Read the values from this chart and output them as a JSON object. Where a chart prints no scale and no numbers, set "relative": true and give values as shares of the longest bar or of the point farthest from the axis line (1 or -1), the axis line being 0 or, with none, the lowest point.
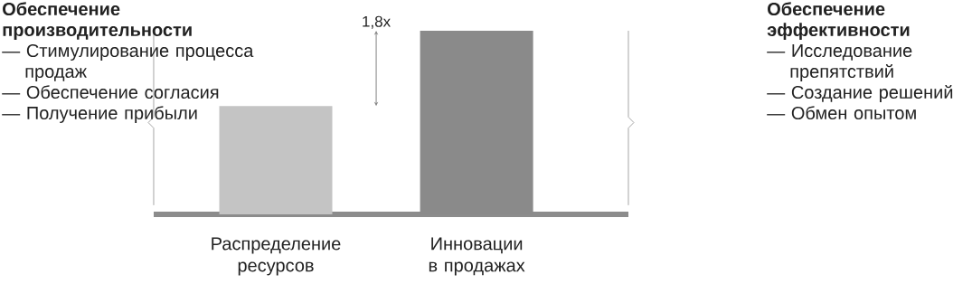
{
  "chart_data": {
    "type": "bar",
    "relative": true,
    "categories": [
      "Распределение ресурсов",
      "Инновации в продажах"
    ],
    "values": [
      0.59,
      1
    ],
    "colors": [
      "#c4c4c4",
      "#8a8a8a"
    ],
    "annotations": [
      "1,8x",
      "Обеспечение производительности",
      "— Стимулирование процесса продаж",
      "— Обеспечение согласия",
      "— Получение прибыли",
      "Обеспечение эффективности",
      "— Исследование препятствий",
      "— Создание решений",
      "— Обмен опытом"
    ]
  }
}
